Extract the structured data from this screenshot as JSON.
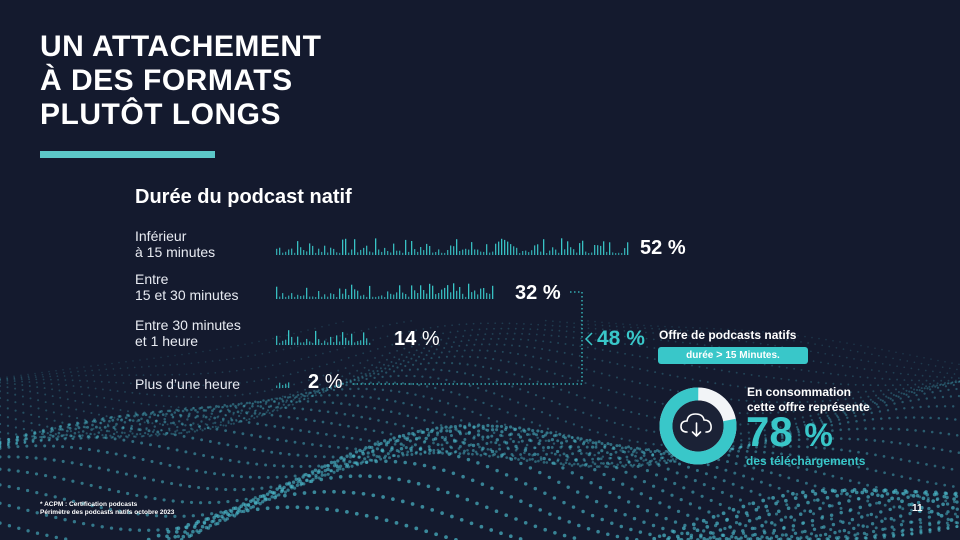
{
  "slide": {
    "title_lines": [
      "UN ATTACHEMENT",
      "À DES FORMATS",
      "PLUTÔT LONGS"
    ],
    "page_number": "11",
    "footnote": [
      "* ACPM : Certification podcasts",
      "Périmètre des podcasts natifs octobre 2023"
    ],
    "colors": {
      "background": "#141a2e",
      "accent": "#39c7c9",
      "text": "#ffffff"
    }
  },
  "chart_data": {
    "type": "bar",
    "title": "Durée du podcast natif",
    "categories": [
      [
        "Inférieur",
        "à 15 minutes"
      ],
      [
        "Entre",
        "15 et 30 minutes"
      ],
      [
        "Entre 30 minutes",
        "et 1 heure"
      ],
      [
        "Plus d’une heure"
      ]
    ],
    "values": [
      52,
      32,
      14,
      2
    ],
    "value_labels": [
      "52",
      "32",
      "14",
      "2"
    ],
    "unit": "%"
  },
  "highlight": {
    "percent": "48 %",
    "label": "Offre de podcasts natifs",
    "pill_prefix": "durée",
    "pill_symbol": ">",
    "pill_suffix": "15 Minutes."
  },
  "consumption": {
    "line1": "En consommation",
    "line2": "cette offre représente",
    "value": 78,
    "value_text": "78",
    "unit": "%",
    "caption": "des téléchargements",
    "icon": "cloud-download-icon"
  }
}
